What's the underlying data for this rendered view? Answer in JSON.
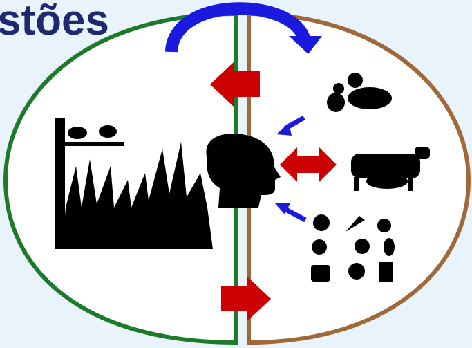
{
  "header": {
    "title": "stões"
  }
}
